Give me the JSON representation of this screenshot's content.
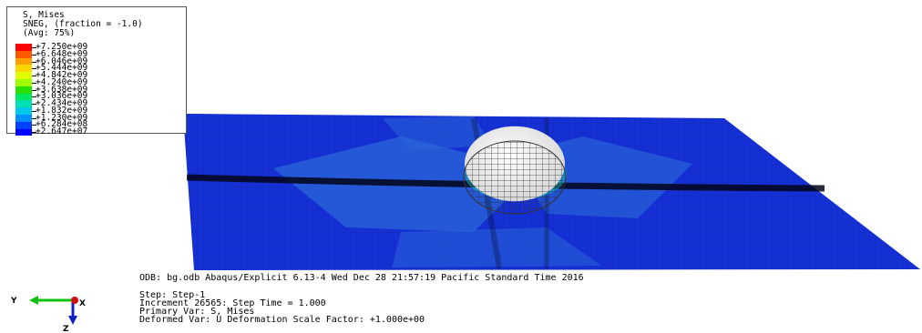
{
  "legend": {
    "title": "S, Mises",
    "subtitle": "SNEG, (fraction = -1.0)",
    "avg": "(Avg: 75%)",
    "values": [
      "+7.250e+09",
      "+6.648e+09",
      "+6.046e+09",
      "+5.444e+09",
      "+4.842e+09",
      "+4.240e+09",
      "+3.638e+09",
      "+3.036e+09",
      "+2.434e+09",
      "+1.832e+09",
      "+1.230e+09",
      "+6.284e+08",
      "+2.647e+07"
    ],
    "colors": [
      "#ff0000",
      "#ff5a00",
      "#ffa000",
      "#ffd500",
      "#e0ff00",
      "#9eff00",
      "#28e000",
      "#00e860",
      "#00e0b0",
      "#00c8e8",
      "#0090ff",
      "#0040ff",
      "#0000ff"
    ]
  },
  "info": {
    "odb_line": "ODB: bg.odb    Abaqus/Explicit 6.13-4    Wed Dec 28 21:57:19 Pacific Standard Time 2016",
    "step": "Step: Step-1",
    "increment": "Increment     26565: Step Time =    1.000",
    "primary_var": "Primary Var: S, Mises",
    "deformed_var": "Deformed Var: U   Deformation Scale Factor: +1.000e+00"
  },
  "triad": {
    "y_label": "Y",
    "x_label": "X",
    "z_label": "Z"
  }
}
